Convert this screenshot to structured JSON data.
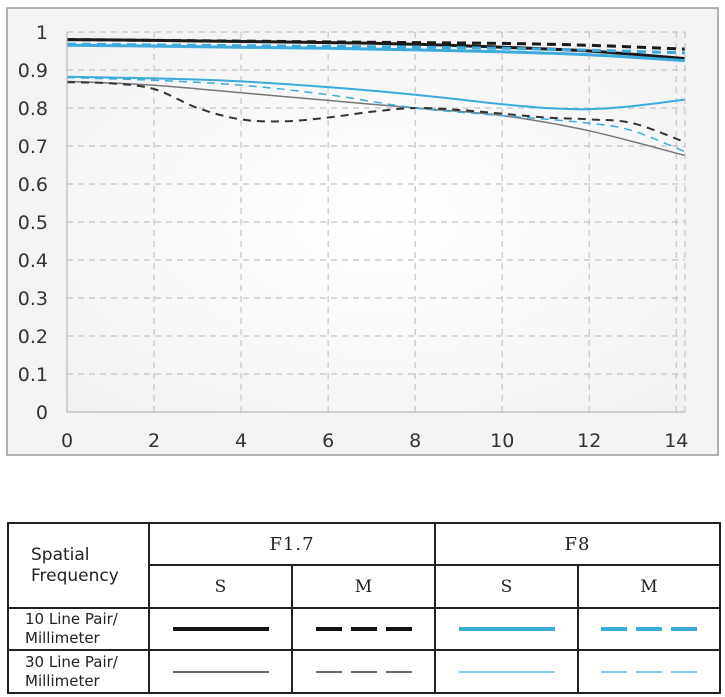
{
  "chart_data": {
    "type": "line",
    "title": "",
    "xlabel": "",
    "ylabel": "",
    "xlim": [
      0,
      14.2
    ],
    "ylim": [
      0,
      1
    ],
    "x_ticks": [
      "0",
      "2",
      "4",
      "6",
      "8",
      "10",
      "12",
      "14"
    ],
    "y_ticks": [
      "0",
      "0.1",
      "0.2",
      "0.3",
      "0.4",
      "0.5",
      "0.6",
      "0.7",
      "0.8",
      "0.9",
      "1"
    ],
    "grid": true,
    "series": [
      {
        "style": "F1.7-S-10",
        "color": "#1a1a1a",
        "width": 3,
        "dash": "",
        "x": [
          0,
          2,
          4,
          6,
          8,
          10,
          12,
          14.2
        ],
        "y": [
          0.98,
          0.978,
          0.975,
          0.972,
          0.968,
          0.96,
          0.95,
          0.93
        ]
      },
      {
        "style": "F1.7-M-10",
        "color": "#1a1a1a",
        "width": 3,
        "dash": "9,6",
        "x": [
          0,
          2,
          4,
          6,
          8,
          10,
          12,
          14.2
        ],
        "y": [
          0.98,
          0.978,
          0.976,
          0.974,
          0.972,
          0.97,
          0.965,
          0.955
        ]
      },
      {
        "style": "F8-S-10",
        "color": "#3daadc",
        "width": 3,
        "dash": "",
        "x": [
          0,
          2,
          4,
          6,
          8,
          10,
          12,
          14.2
        ],
        "y": [
          0.965,
          0.963,
          0.96,
          0.957,
          0.953,
          0.948,
          0.94,
          0.925
        ]
      },
      {
        "style": "F8-M-10",
        "color": "#3daadc",
        "width": 3,
        "dash": "9,6",
        "x": [
          0,
          2,
          4,
          6,
          8,
          10,
          12,
          14.2
        ],
        "y": [
          0.968,
          0.966,
          0.964,
          0.962,
          0.96,
          0.957,
          0.952,
          0.945
        ]
      },
      {
        "style": "F1.7-S-30",
        "color": "#777777",
        "width": 1.5,
        "dash": "",
        "x": [
          0,
          2,
          4,
          6,
          8,
          10,
          12,
          14.2
        ],
        "y": [
          0.87,
          0.86,
          0.84,
          0.82,
          0.8,
          0.78,
          0.74,
          0.675
        ]
      },
      {
        "style": "F1.7-M-30",
        "color": "#333333",
        "width": 2,
        "dash": "8,6",
        "x": [
          0,
          1,
          2,
          3,
          4,
          5,
          6,
          7,
          8,
          9,
          10,
          11,
          12,
          13,
          14.2
        ],
        "y": [
          0.868,
          0.865,
          0.85,
          0.8,
          0.77,
          0.765,
          0.775,
          0.79,
          0.8,
          0.795,
          0.785,
          0.775,
          0.77,
          0.76,
          0.71
        ]
      },
      {
        "style": "F8-S-30",
        "color": "#3daadc",
        "width": 2,
        "dash": "",
        "x": [
          0,
          2,
          4,
          6,
          8,
          10,
          11,
          12,
          13,
          14.2
        ],
        "y": [
          0.882,
          0.878,
          0.87,
          0.855,
          0.835,
          0.81,
          0.8,
          0.797,
          0.805,
          0.822
        ]
      },
      {
        "style": "F8-M-30",
        "color": "#3daadc",
        "width": 1.5,
        "dash": "8,6",
        "x": [
          0,
          2,
          4,
          6,
          8,
          10,
          12,
          13,
          14.2
        ],
        "y": [
          0.88,
          0.873,
          0.86,
          0.835,
          0.8,
          0.78,
          0.76,
          0.74,
          0.685
        ]
      }
    ]
  },
  "legend": {
    "corner_line1": "Spatial",
    "corner_line2": "Frequency",
    "aperture_1": "F1.7",
    "aperture_2": "F8",
    "col_s": "S",
    "col_m": "M",
    "row_10_line1": "10 Line Pair/",
    "row_10_line2": "Millimeter",
    "row_30_line1": "30 Line Pair/",
    "row_30_line2": "Millimeter",
    "black_color": "#111111",
    "blue_color": "#3daadc"
  }
}
